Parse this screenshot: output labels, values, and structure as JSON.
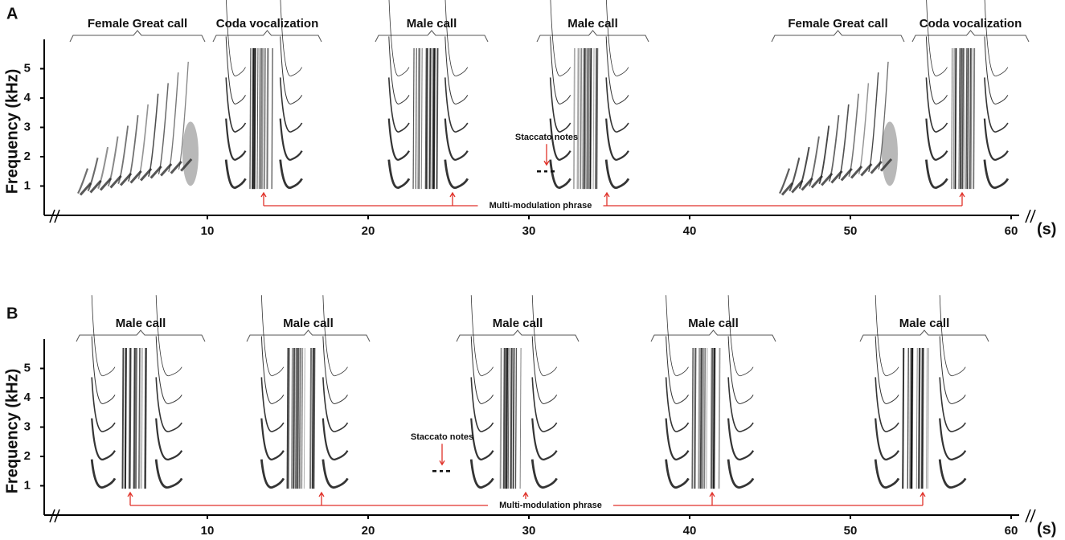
{
  "chart_data": [
    {
      "type": "spectrogram",
      "panel": "A",
      "ylabel": "Frequency (kHz)",
      "xunit": "(s)",
      "xlim": [
        0,
        61.5
      ],
      "ylim": [
        0,
        6
      ],
      "xticks": [
        10,
        20,
        30,
        40,
        50,
        60
      ],
      "yticks": [
        1,
        2,
        3,
        4,
        5
      ],
      "calls": [
        {
          "label": "Female Great call",
          "start": 1.45,
          "end": 9.85
        },
        {
          "label": "Coda vocalization",
          "start": 10.35,
          "end": 17.1
        },
        {
          "label": "Male call",
          "start": 20.45,
          "end": 27.45
        },
        {
          "label": "Male call",
          "start": 30.5,
          "end": 37.45
        },
        {
          "label": "Female Great call",
          "start": 45.1,
          "end": 53.35
        },
        {
          "label": "Coda vocalization",
          "start": 53.85,
          "end": 61.1
        }
      ],
      "staccato": {
        "label": "Staccato notes",
        "time": 31.1
      },
      "phrase": {
        "label": "Multi-modulation phrase",
        "times": [
          13.5,
          25.25,
          34.85,
          56.95
        ]
      }
    },
    {
      "type": "spectrogram",
      "panel": "B",
      "ylabel": "Frequency (kHz)",
      "xunit": "(s)",
      "xlim": [
        0,
        61.5
      ],
      "ylim": [
        0,
        6
      ],
      "xticks": [
        10,
        20,
        30,
        40,
        50,
        60
      ],
      "yticks": [
        1,
        2,
        3,
        4,
        5
      ],
      "calls": [
        {
          "label": "Male call",
          "start": 1.85,
          "end": 9.85
        },
        {
          "label": "Male call",
          "start": 12.45,
          "end": 20.1
        },
        {
          "label": "Male call",
          "start": 25.5,
          "end": 33.1
        },
        {
          "label": "Male call",
          "start": 37.6,
          "end": 45.35
        },
        {
          "label": "Male call",
          "start": 50.6,
          "end": 58.6
        }
      ],
      "staccato": {
        "label": "Staccato notes",
        "time": 24.6
      },
      "phrase": {
        "label": "Multi-modulation phrase",
        "times": [
          5.2,
          17.1,
          29.8,
          41.4,
          54.5
        ]
      }
    }
  ]
}
